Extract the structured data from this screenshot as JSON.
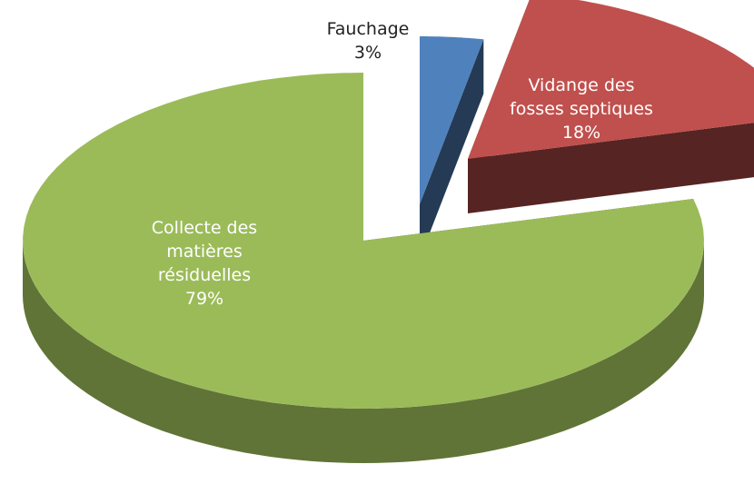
{
  "chart_data": {
    "type": "pie3d",
    "categories": [
      "Fauchage",
      "Vidange des fosses septiques",
      "Collecte des matières résiduelles"
    ],
    "values": [
      3,
      18,
      79
    ],
    "value_labels": [
      "3%",
      "18%",
      "79%"
    ],
    "colors": [
      "#4f81bd",
      "#c0504d",
      "#9bbb59"
    ]
  }
}
